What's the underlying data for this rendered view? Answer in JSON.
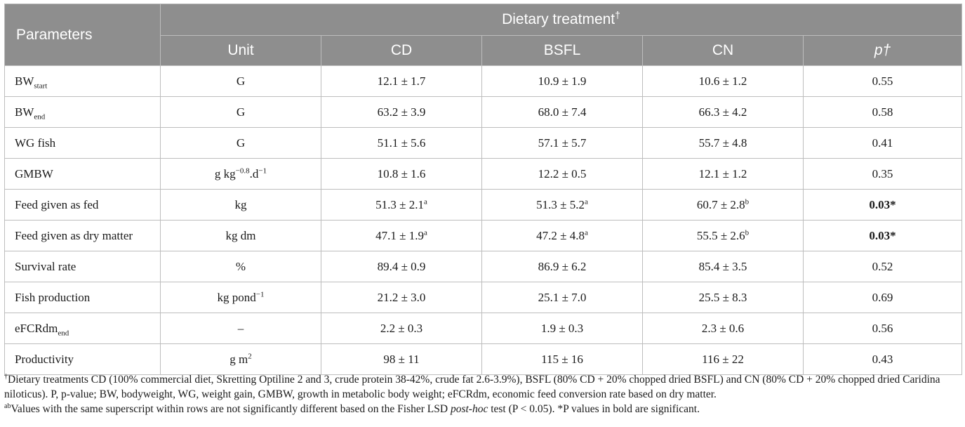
{
  "header": {
    "parameters": "Parameters",
    "dietary_treatment": "Dietary treatment",
    "dagger": "†",
    "columns": [
      "Unit",
      "CD",
      "BSFL",
      "CN",
      "p†"
    ]
  },
  "rows": [
    {
      "param": "BW",
      "param_sub": "start",
      "unit": "G",
      "cd": "12.1 ± 1.7",
      "bsfl": "10.9 ± 1.9",
      "cn": "10.6 ± 1.2",
      "p": "0.55"
    },
    {
      "param": "BW",
      "param_sub": "end",
      "unit": "G",
      "cd": "63.2 ± 3.9",
      "bsfl": "68.0 ± 7.4",
      "cn": "66.3 ± 4.2",
      "p": "0.58"
    },
    {
      "param": "WG fish",
      "unit": "G",
      "cd": "51.1 ± 5.6",
      "bsfl": "57.1 ± 5.7",
      "cn": "55.7 ± 4.8",
      "p": "0.41"
    },
    {
      "param": "GMBW",
      "unit_a": "g kg",
      "unit_sup1": "−0.8",
      "unit_b": ".d",
      "unit_sup2": "−1",
      "cd": "10.8 ± 1.6",
      "bsfl": "12.2 ± 0.5",
      "cn": "12.1 ± 1.2",
      "p": "0.35"
    },
    {
      "param": "Feed given as fed",
      "unit": "kg",
      "cd": "51.3 ± 2.1",
      "cd_sup": "a",
      "bsfl": "51.3 ± 5.2",
      "bsfl_sup": "a",
      "cn": "60.7 ± 2.8",
      "cn_sup": "b",
      "p": "0.03*"
    },
    {
      "param": "Feed given as dry matter",
      "unit": "kg dm",
      "cd": "47.1 ± 1.9",
      "cd_sup": "a",
      "bsfl": "47.2 ± 4.8",
      "bsfl_sup": "a",
      "cn": "55.5 ± 2.6",
      "cn_sup": "b",
      "p": "0.03*"
    },
    {
      "param": "Survival rate",
      "unit": "%",
      "cd": "89.4 ± 0.9",
      "bsfl": "86.9 ± 6.2",
      "cn": "85.4 ± 3.5",
      "p": "0.52"
    },
    {
      "param": "Fish production",
      "unit_a": "kg pond",
      "unit_sup1": "−1",
      "cd": "21.2 ± 3.0",
      "bsfl": "25.1 ± 7.0",
      "cn": "25.5 ± 8.3",
      "p": "0.69"
    },
    {
      "param": "eFCRdm",
      "param_sub": "end",
      "unit": "–",
      "cd": "2.2 ± 0.3",
      "bsfl": "1.9 ± 0.3",
      "cn": "2.3 ± 0.6",
      "p": "0.56"
    },
    {
      "param": "Productivity",
      "unit_a": "g m",
      "unit_sup1": "2",
      "cd": "98 ± 11",
      "bsfl": "115 ± 16",
      "cn": "116 ± 22",
      "p": "0.43"
    }
  ],
  "footnotes": {
    "f1_mark": "†",
    "f1_text": "Dietary treatments CD (100% commercial diet, Skretting Optiline 2 and 3, crude protein 38-42%, crude fat 2.6-3.9%), BSFL (80% CD + 20% chopped dried BSFL) and CN (80% CD + 20% chopped dried Caridina niloticus). P, p-value; BW, bodyweight, WG, weight gain, GMBW, growth in metabolic body weight; eFCRdm, economic feed conversion rate based on dry matter.",
    "f2_mark": "ab",
    "f2_text_a": "Values with the same superscript within rows are not significantly different based on the Fisher LSD ",
    "f2_italic": "post-hoc",
    "f2_text_b": " test (P < 0.05). *P values in bold are significant."
  }
}
